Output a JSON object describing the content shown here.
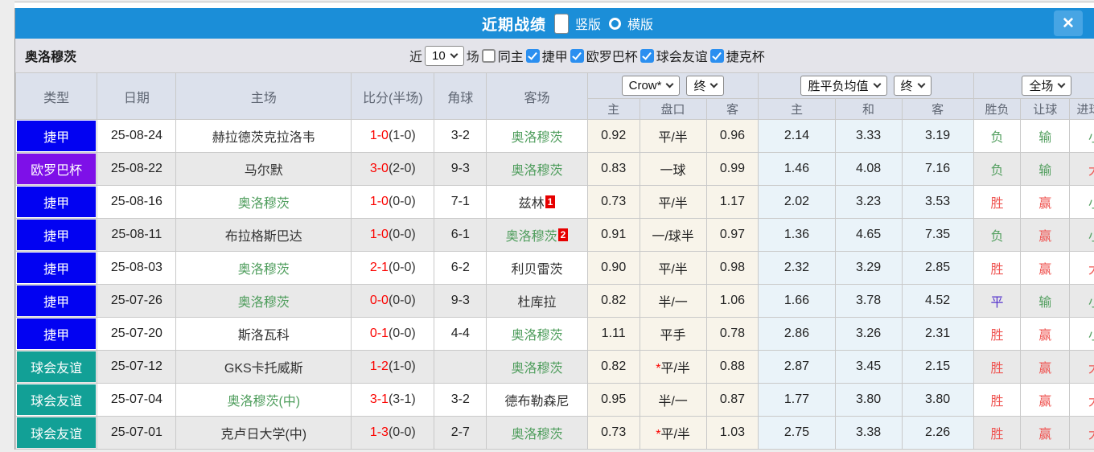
{
  "titlebar": {
    "title": "近期战绩",
    "view_options": [
      {
        "label": "竖版",
        "selected": true
      },
      {
        "label": "横版",
        "selected": false
      }
    ],
    "close_label": "✕"
  },
  "filter": {
    "team": "奥洛穆茨",
    "recent_label": "近",
    "recent_value": "10",
    "games_label": "场",
    "same_home": {
      "label": "同主",
      "checked": false
    },
    "competitions": [
      {
        "label": "捷甲",
        "checked": true
      },
      {
        "label": "欧罗巴杯",
        "checked": true
      },
      {
        "label": "球会友谊",
        "checked": true
      },
      {
        "label": "捷克杯",
        "checked": true
      }
    ]
  },
  "table": {
    "left_headers": [
      "类型",
      "日期",
      "主场",
      "比分(半场)",
      "角球",
      "客场"
    ],
    "selectors": {
      "company": "Crow*",
      "company_time": "终",
      "average": "胜平负均值",
      "average_time": "终",
      "scope": "全场"
    },
    "sub_headers": [
      "主",
      "盘口",
      "客",
      "主",
      "和",
      "客",
      "胜负",
      "让球",
      "进球数"
    ],
    "league_colors": {
      "捷甲": "#0202f2",
      "欧罗巴杯": "#7e10e8",
      "球会友谊": "#12a096"
    },
    "rows": [
      {
        "league": "捷甲",
        "date": "25-08-24",
        "home": "赫拉德茨克拉洛韦",
        "home_hl": false,
        "home_badge": "",
        "score_ft": "1-0",
        "score_ht": "(1-0)",
        "corners": "3-2",
        "away": "奥洛穆茨",
        "away_hl": true,
        "away_badge": "",
        "odds_home": "0.92",
        "handicap_star": "",
        "handicap": "平/半",
        "odds_away": "0.96",
        "avg_home": "2.14",
        "avg_draw": "3.33",
        "avg_away": "3.19",
        "result_wdl": {
          "text": "负",
          "color": "green"
        },
        "result_handicap": {
          "text": "输",
          "color": "green"
        },
        "result_goals": {
          "text": "小",
          "color": "green"
        }
      },
      {
        "league": "欧罗巴杯",
        "date": "25-08-22",
        "home": "马尔默",
        "home_hl": false,
        "home_badge": "",
        "score_ft": "3-0",
        "score_ht": "(2-0)",
        "corners": "9-3",
        "away": "奥洛穆茨",
        "away_hl": true,
        "away_badge": "",
        "odds_home": "0.83",
        "handicap_star": "",
        "handicap": "一球",
        "odds_away": "0.99",
        "avg_home": "1.46",
        "avg_draw": "4.08",
        "avg_away": "7.16",
        "result_wdl": {
          "text": "负",
          "color": "green"
        },
        "result_handicap": {
          "text": "输",
          "color": "green"
        },
        "result_goals": {
          "text": "大",
          "color": "red"
        }
      },
      {
        "league": "捷甲",
        "date": "25-08-16",
        "home": "奥洛穆茨",
        "home_hl": true,
        "home_badge": "",
        "score_ft": "1-0",
        "score_ht": "(0-0)",
        "corners": "7-1",
        "away": "兹林",
        "away_hl": false,
        "away_badge": "1",
        "odds_home": "0.73",
        "handicap_star": "",
        "handicap": "平/半",
        "odds_away": "1.17",
        "avg_home": "2.02",
        "avg_draw": "3.23",
        "avg_away": "3.53",
        "result_wdl": {
          "text": "胜",
          "color": "red"
        },
        "result_handicap": {
          "text": "赢",
          "color": "red"
        },
        "result_goals": {
          "text": "小",
          "color": "green"
        }
      },
      {
        "league": "捷甲",
        "date": "25-08-11",
        "home": "布拉格斯巴达",
        "home_hl": false,
        "home_badge": "",
        "score_ft": "1-0",
        "score_ht": "(0-0)",
        "corners": "6-1",
        "away": "奥洛穆茨",
        "away_hl": true,
        "away_badge": "2",
        "odds_home": "0.91",
        "handicap_star": "",
        "handicap": "一/球半",
        "odds_away": "0.97",
        "avg_home": "1.36",
        "avg_draw": "4.65",
        "avg_away": "7.35",
        "result_wdl": {
          "text": "负",
          "color": "green"
        },
        "result_handicap": {
          "text": "赢",
          "color": "red"
        },
        "result_goals": {
          "text": "小",
          "color": "green"
        }
      },
      {
        "league": "捷甲",
        "date": "25-08-03",
        "home": "奥洛穆茨",
        "home_hl": true,
        "home_badge": "",
        "score_ft": "2-1",
        "score_ht": "(0-0)",
        "corners": "6-2",
        "away": "利贝雷茨",
        "away_hl": false,
        "away_badge": "",
        "odds_home": "0.90",
        "handicap_star": "",
        "handicap": "平/半",
        "odds_away": "0.98",
        "avg_home": "2.32",
        "avg_draw": "3.29",
        "avg_away": "2.85",
        "result_wdl": {
          "text": "胜",
          "color": "red"
        },
        "result_handicap": {
          "text": "赢",
          "color": "red"
        },
        "result_goals": {
          "text": "大",
          "color": "red"
        }
      },
      {
        "league": "捷甲",
        "date": "25-07-26",
        "home": "奥洛穆茨",
        "home_hl": true,
        "home_badge": "",
        "score_ft": "0-0",
        "score_ht": "(0-0)",
        "corners": "9-3",
        "away": "杜库拉",
        "away_hl": false,
        "away_badge": "",
        "odds_home": "0.82",
        "handicap_star": "",
        "handicap": "半/一",
        "odds_away": "1.06",
        "avg_home": "1.66",
        "avg_draw": "3.78",
        "avg_away": "4.52",
        "result_wdl": {
          "text": "平",
          "color": "blue"
        },
        "result_handicap": {
          "text": "输",
          "color": "green"
        },
        "result_goals": {
          "text": "小",
          "color": "green"
        }
      },
      {
        "league": "捷甲",
        "date": "25-07-20",
        "home": "斯洛瓦科",
        "home_hl": false,
        "home_badge": "",
        "score_ft": "0-1",
        "score_ht": "(0-0)",
        "corners": "4-4",
        "away": "奥洛穆茨",
        "away_hl": true,
        "away_badge": "",
        "odds_home": "1.11",
        "handicap_star": "",
        "handicap": "平手",
        "odds_away": "0.78",
        "avg_home": "2.86",
        "avg_draw": "3.26",
        "avg_away": "2.31",
        "result_wdl": {
          "text": "胜",
          "color": "red"
        },
        "result_handicap": {
          "text": "赢",
          "color": "red"
        },
        "result_goals": {
          "text": "小",
          "color": "green"
        }
      },
      {
        "league": "球会友谊",
        "date": "25-07-12",
        "home": "GKS卡托威斯",
        "home_hl": false,
        "home_badge": "",
        "score_ft": "1-2",
        "score_ht": "(1-0)",
        "corners": "",
        "away": "奥洛穆茨",
        "away_hl": true,
        "away_badge": "",
        "odds_home": "0.82",
        "handicap_star": "*",
        "handicap": "平/半",
        "odds_away": "0.88",
        "avg_home": "2.87",
        "avg_draw": "3.45",
        "avg_away": "2.15",
        "result_wdl": {
          "text": "胜",
          "color": "red"
        },
        "result_handicap": {
          "text": "赢",
          "color": "red"
        },
        "result_goals": {
          "text": "大",
          "color": "red"
        }
      },
      {
        "league": "球会友谊",
        "date": "25-07-04",
        "home": "奥洛穆茨(中)",
        "home_hl": true,
        "home_badge": "",
        "score_ft": "3-1",
        "score_ht": "(3-1)",
        "corners": "3-2",
        "away": "德布勒森尼",
        "away_hl": false,
        "away_badge": "",
        "odds_home": "0.95",
        "handicap_star": "",
        "handicap": "半/一",
        "odds_away": "0.87",
        "avg_home": "1.77",
        "avg_draw": "3.80",
        "avg_away": "3.80",
        "result_wdl": {
          "text": "胜",
          "color": "red"
        },
        "result_handicap": {
          "text": "赢",
          "color": "red"
        },
        "result_goals": {
          "text": "大",
          "color": "red"
        }
      },
      {
        "league": "球会友谊",
        "date": "25-07-01",
        "home": "克卢日大学(中)",
        "home_hl": false,
        "home_badge": "",
        "score_ft": "1-3",
        "score_ht": "(0-0)",
        "corners": "2-7",
        "away": "奥洛穆茨",
        "away_hl": true,
        "away_badge": "",
        "odds_home": "0.73",
        "handicap_star": "*",
        "handicap": "平/半",
        "odds_away": "1.03",
        "avg_home": "2.75",
        "avg_draw": "3.38",
        "avg_away": "2.26",
        "result_wdl": {
          "text": "胜",
          "color": "red"
        },
        "result_handicap": {
          "text": "赢",
          "color": "red"
        },
        "result_goals": {
          "text": "大",
          "color": "red"
        }
      }
    ]
  }
}
